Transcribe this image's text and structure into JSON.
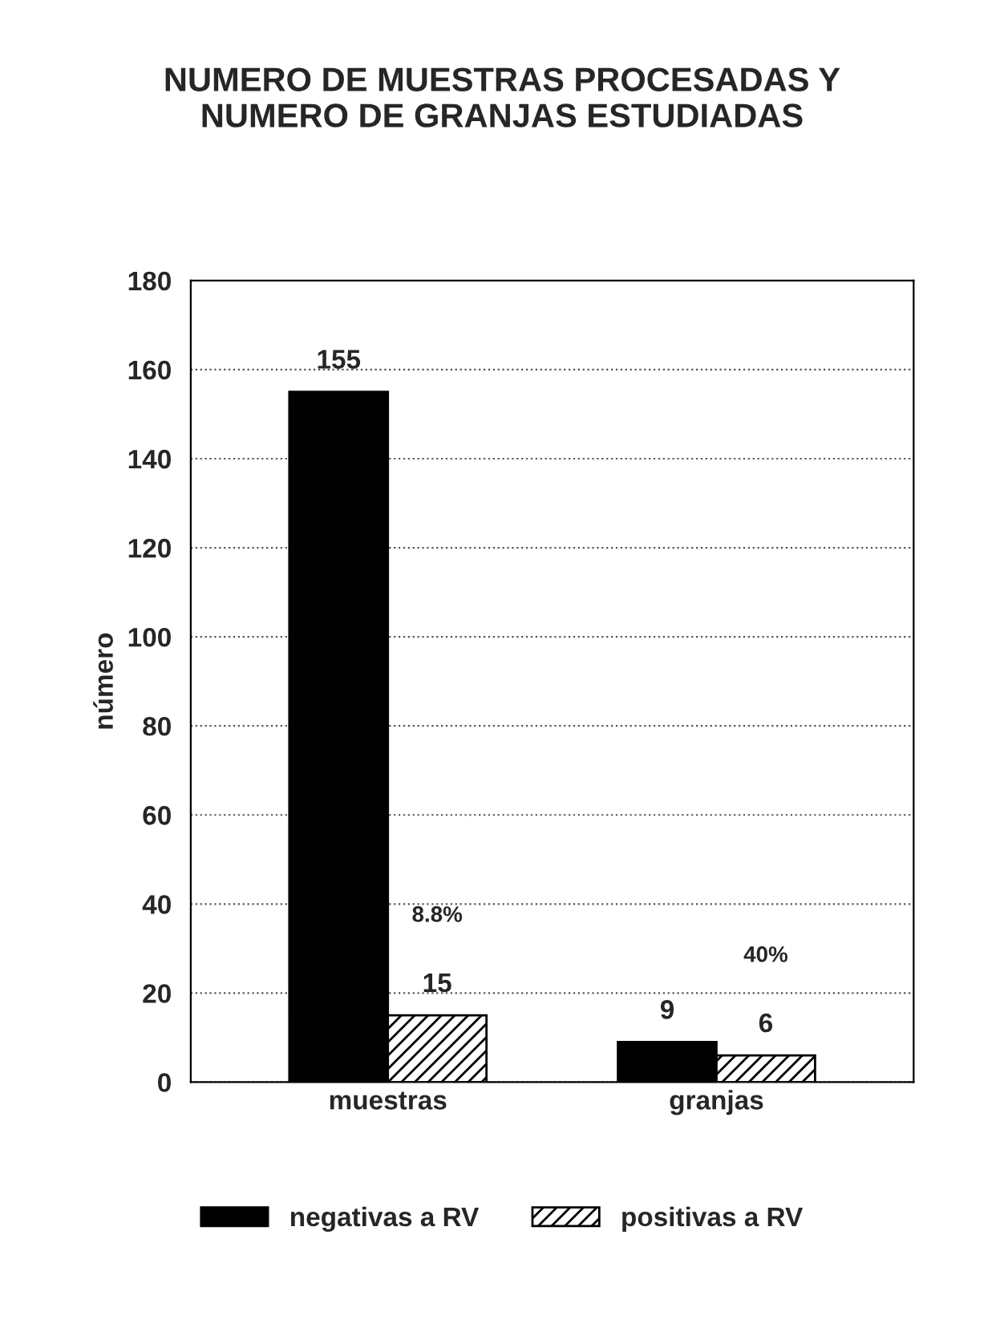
{
  "chart_data": {
    "type": "bar",
    "title": "NUMERO DE MUESTRAS PROCESADAS Y\nNUMERO DE GRANJAS ESTUDIADAS",
    "ylabel": "número",
    "categories": [
      "muestras",
      "granjas"
    ],
    "series": [
      {
        "name": "negativas a RV",
        "color": "#000000",
        "values": [
          155,
          9
        ]
      },
      {
        "name": "positivas a RV",
        "color": "#000000",
        "values": [
          15,
          6
        ]
      }
    ],
    "annotations": [
      "8.8%",
      "40%"
    ],
    "ylim": [
      0,
      180
    ],
    "yticks": [
      0,
      20,
      40,
      60,
      80,
      100,
      120,
      140,
      160,
      180
    ],
    "data_labels": true,
    "grid": "y",
    "legend": "bottom"
  }
}
